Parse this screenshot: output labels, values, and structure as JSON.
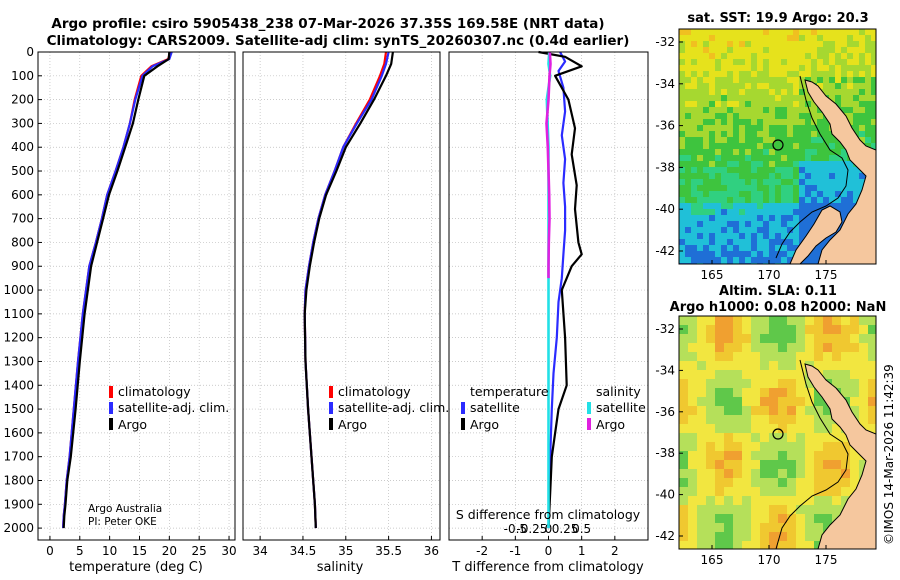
{
  "header": {
    "line1": "Argo profile: csiro 5905438_238 07-Mar-2026 37.35S 169.58E (NRT data)",
    "line2": "Climatology: CARS2009. Satellite-adj clim: synTS_20260307.nc (0.4d earlier)"
  },
  "credit": {
    "org": "Argo Australia",
    "pi": "PI: Peter OKE"
  },
  "timestamp": "©IMOS 14-Mar-2026 11:42:39",
  "colors": {
    "climatology": "#ff0000",
    "satellite": "#2b2bff",
    "argo": "#000000",
    "sat_salinity": "#22e0e6",
    "argo_salinity": "#e020e0"
  },
  "chart_data": [
    {
      "type": "line",
      "id": "temperature-profile",
      "xlabel": "temperature (deg C)",
      "ylabel": "",
      "xlim": [
        -2,
        31
      ],
      "ylim": [
        0,
        2050
      ],
      "xticks": [
        0,
        5,
        10,
        15,
        20,
        25,
        30
      ],
      "yticks": [
        0,
        100,
        200,
        300,
        400,
        500,
        600,
        700,
        800,
        900,
        1000,
        1100,
        1200,
        1300,
        1400,
        1500,
        1600,
        1700,
        1800,
        1900,
        2000
      ],
      "grid": true,
      "legend": [
        "climatology",
        "satellite-adj. clim.",
        "Argo"
      ],
      "series": [
        {
          "name": "climatology",
          "x": [
            20.2,
            19.8,
            17,
            15.3,
            14.2,
            13.4,
            12.3,
            11.0,
            9.6,
            8.7,
            7.7,
            6.6,
            5.5,
            4.7,
            4.0,
            3.3,
            2.8,
            2.5,
            2.3,
            2.2
          ],
          "y": [
            0,
            30,
            60,
            100,
            200,
            300,
            400,
            500,
            600,
            700,
            800,
            900,
            1100,
            1300,
            1500,
            1700,
            1800,
            1900,
            1950,
            2000
          ]
        },
        {
          "name": "satellite-adj. clim.",
          "x": [
            20.4,
            20.0,
            17.2,
            15.5,
            14.3,
            13.4,
            12.3,
            11.0,
            9.6,
            8.7,
            7.7,
            6.6,
            5.5,
            4.7,
            4.0,
            3.3,
            2.8,
            2.5,
            2.3,
            2.2
          ],
          "y": [
            0,
            30,
            60,
            100,
            200,
            300,
            400,
            500,
            600,
            700,
            800,
            900,
            1100,
            1300,
            1500,
            1700,
            1800,
            1900,
            1950,
            2000
          ]
        },
        {
          "name": "Argo",
          "x": [
            20.0,
            19.9,
            18,
            15.8,
            14.8,
            13.9,
            12.6,
            11.3,
            9.9,
            8.9,
            7.9,
            6.9,
            5.8,
            5.0,
            4.3,
            3.5,
            2.9,
            2.6,
            2.4,
            2.3
          ],
          "y": [
            0,
            30,
            60,
            100,
            200,
            300,
            400,
            500,
            600,
            700,
            800,
            900,
            1100,
            1300,
            1500,
            1700,
            1800,
            1900,
            1950,
            2000
          ]
        }
      ]
    },
    {
      "type": "line",
      "id": "salinity-profile",
      "xlabel": "salinity",
      "xlim": [
        33.8,
        36.1
      ],
      "ylim": [
        0,
        2050
      ],
      "xticks": [
        34,
        34.5,
        35,
        35.5,
        36
      ],
      "xticklabels": [
        "34",
        "34.5",
        "35",
        "35.5",
        "36"
      ],
      "grid": true,
      "legend": [
        "climatology",
        "satellite-adj. clim.",
        "Argo"
      ],
      "series": [
        {
          "name": "climatology",
          "x": [
            35.47,
            35.45,
            35.4,
            35.28,
            35.12,
            34.97,
            34.87,
            34.76,
            34.68,
            34.62,
            34.57,
            34.53,
            34.52,
            34.53,
            34.56,
            34.6,
            34.62,
            34.64,
            34.65
          ],
          "y": [
            0,
            50,
            100,
            200,
            300,
            400,
            500,
            600,
            700,
            800,
            900,
            1000,
            1100,
            1300,
            1500,
            1700,
            1800,
            1900,
            2000
          ]
        },
        {
          "name": "satellite-adj. clim.",
          "x": [
            35.5,
            35.47,
            35.42,
            35.3,
            35.13,
            34.97,
            34.87,
            34.76,
            34.68,
            34.62,
            34.57,
            34.53,
            34.52,
            34.53,
            34.56,
            34.6,
            34.62,
            34.64,
            34.65
          ],
          "y": [
            0,
            50,
            100,
            200,
            300,
            400,
            500,
            600,
            700,
            800,
            900,
            1000,
            1100,
            1300,
            1500,
            1700,
            1800,
            1900,
            2000
          ]
        },
        {
          "name": "Argo",
          "x": [
            35.55,
            35.53,
            35.47,
            35.33,
            35.17,
            35.0,
            34.89,
            34.77,
            34.69,
            34.63,
            34.58,
            34.54,
            34.52,
            34.53,
            34.56,
            34.6,
            34.62,
            34.64,
            34.65
          ],
          "y": [
            0,
            50,
            100,
            200,
            300,
            400,
            500,
            600,
            700,
            800,
            900,
            1000,
            1100,
            1300,
            1500,
            1700,
            1800,
            1900,
            2000
          ]
        }
      ]
    },
    {
      "type": "line",
      "id": "difference-profile",
      "xlabel": "T difference from climatology",
      "xlabel2": "S difference from climatology",
      "xlim": [
        -3,
        3
      ],
      "ylim": [
        0,
        2050
      ],
      "xticks": [
        -2,
        -1,
        0,
        1,
        2
      ],
      "xticklabels": [
        "-2",
        "-1",
        "0",
        "1",
        "2"
      ],
      "xticks2_at": [
        -1,
        -0.5,
        0,
        0.5,
        1
      ],
      "xticks2": [
        "-0.5",
        "-0.25",
        "0",
        "0.25",
        "0.5"
      ],
      "grid": true,
      "legend_temperature_title": "temperature",
      "legend_salinity_title": "salinity",
      "legend": [
        "satellite",
        "Argo"
      ],
      "series": [
        {
          "name": "T satellite",
          "x": [
            0.35,
            0.5,
            0.3,
            0.45,
            0.5,
            0.4,
            0.5,
            0.45,
            0.5,
            0.5,
            0.45,
            0.4,
            0.3,
            0.25,
            0.15,
            0.1,
            0.05,
            0.02,
            0.0
          ],
          "y": [
            0,
            40,
            80,
            150,
            250,
            350,
            450,
            550,
            650,
            750,
            850,
            950,
            1050,
            1200,
            1350,
            1500,
            1700,
            1850,
            2000
          ]
        },
        {
          "name": "T Argo",
          "x": [
            -0.3,
            0.5,
            1.0,
            0.2,
            0.6,
            0.8,
            0.7,
            0.85,
            0.8,
            0.9,
            1.0,
            0.7,
            0.4,
            0.5,
            0.55,
            0.3,
            0.1,
            0.05,
            0.0
          ],
          "y": [
            0,
            20,
            60,
            100,
            200,
            320,
            430,
            560,
            660,
            800,
            850,
            900,
            1000,
            1200,
            1400,
            1500,
            1700,
            1850,
            2000
          ]
        },
        {
          "name": "S satellite",
          "x": [
            0.02,
            0.0,
            0.05,
            -0.05,
            0.0,
            0.0,
            0.0,
            0.0,
            0.0,
            0.0,
            0.0
          ],
          "y": [
            0,
            50,
            100,
            200,
            400,
            600,
            800,
            1000,
            1400,
            1800,
            2000
          ]
        },
        {
          "name": "S Argo",
          "x": [
            0.04,
            0.06,
            0.03,
            0.0,
            -0.06,
            -0.02,
            0.0,
            0.02,
            0.03,
            0.01,
            0.0,
            0.0
          ],
          "y": [
            0,
            50,
            100,
            200,
            300,
            400,
            500,
            600,
            700,
            800,
            900,
            950
          ]
        }
      ]
    },
    {
      "type": "heatmap",
      "id": "sst-map",
      "title": "sat. SST: 19.9 Argo: 20.3",
      "xticks": [
        "165",
        "170",
        "175"
      ],
      "yticks": [
        "-32",
        "-34",
        "-36",
        "-38",
        "-40",
        "-42"
      ],
      "float_position": {
        "lon": 169.58,
        "lat": -37.35
      }
    },
    {
      "type": "heatmap",
      "id": "sla-map",
      "title_line1": "Altim. SLA: 0.11",
      "title_line2": "Argo h1000: 0.08 h2000: NaN",
      "xticks": [
        "165",
        "170",
        "175"
      ],
      "yticks": [
        "-32",
        "-34",
        "-36",
        "-38",
        "-40",
        "-42"
      ],
      "float_position": {
        "lon": 169.58,
        "lat": -37.35
      }
    }
  ]
}
